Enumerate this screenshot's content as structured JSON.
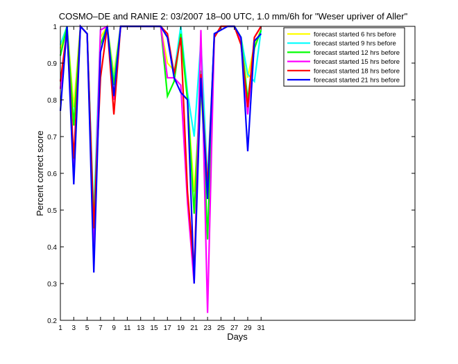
{
  "chart_data": {
    "type": "line",
    "title": "COSMO–DE and RANIE 2: 03/2007 18–00 UTC, 1.0 mm/6h for \"Weser upriver of Aller\"",
    "xlabel": "Days",
    "ylabel": "Percent correct score",
    "xlim": [
      1,
      54
    ],
    "ylim": [
      0.2,
      1.0
    ],
    "xticks": [
      1,
      3,
      5,
      7,
      9,
      11,
      13,
      15,
      17,
      19,
      21,
      23,
      25,
      27,
      29,
      31
    ],
    "yticks": [
      0.2,
      0.3,
      0.4,
      0.5,
      0.6,
      0.7,
      0.8,
      0.9,
      1
    ],
    "ytick_labels": [
      "0.2",
      "0.3",
      "0.4",
      "0.5",
      "0.6",
      "0.7",
      "0.8",
      "0.9",
      "1"
    ],
    "legend_position": "top-right",
    "grid": false,
    "x": [
      1,
      2,
      3,
      4,
      5,
      6,
      7,
      8,
      9,
      10,
      11,
      12,
      13,
      14,
      15,
      16,
      17,
      18,
      19,
      20,
      21,
      22,
      23,
      24,
      25,
      26,
      27,
      28,
      29,
      30,
      31
    ],
    "series": [
      {
        "name": "forecast started 6 hrs before",
        "color": "#ffff00",
        "values": [
          0.94,
          1.0,
          0.78,
          1.0,
          0.98,
          0.45,
          0.97,
          1.0,
          0.87,
          1.0,
          1.0,
          1.0,
          1.0,
          1.0,
          1.0,
          1.0,
          0.9,
          0.88,
          0.97,
          0.8,
          0.55,
          0.82,
          0.55,
          0.97,
          1.0,
          1.0,
          1.0,
          0.97,
          0.86,
          0.95,
          0.99
        ]
      },
      {
        "name": "forecast started 9 hrs before",
        "color": "#00ffff",
        "values": [
          0.95,
          1.0,
          0.73,
          1.0,
          0.98,
          0.48,
          0.99,
          1.0,
          0.85,
          1.0,
          1.0,
          1.0,
          1.0,
          1.0,
          1.0,
          1.0,
          0.97,
          0.87,
          1.0,
          0.82,
          0.7,
          0.96,
          0.58,
          0.97,
          1.0,
          1.0,
          1.0,
          0.97,
          0.87,
          0.85,
          0.99
        ]
      },
      {
        "name": "forecast started 12 hrs before",
        "color": "#00ff00",
        "values": [
          0.92,
          1.0,
          0.73,
          1.0,
          0.98,
          0.46,
          0.95,
          1.0,
          0.84,
          1.0,
          1.0,
          1.0,
          1.0,
          1.0,
          1.0,
          1.0,
          0.81,
          0.85,
          0.98,
          0.8,
          0.49,
          0.88,
          0.42,
          0.97,
          1.0,
          1.0,
          1.0,
          0.97,
          0.8,
          0.94,
          0.99
        ]
      },
      {
        "name": "forecast started 15 hrs before",
        "color": "#ff00ff",
        "values": [
          0.83,
          0.99,
          0.62,
          1.0,
          0.98,
          0.4,
          0.99,
          1.0,
          0.8,
          1.0,
          1.0,
          1.0,
          1.0,
          1.0,
          1.0,
          1.0,
          0.86,
          0.86,
          0.84,
          0.52,
          0.3,
          0.99,
          0.22,
          0.97,
          1.0,
          1.0,
          1.0,
          0.96,
          0.76,
          0.97,
          1.0
        ]
      },
      {
        "name": "forecast started 18 hrs before",
        "color": "#ff0000",
        "values": [
          0.85,
          0.99,
          0.64,
          1.0,
          0.98,
          0.45,
          0.86,
          1.0,
          0.76,
          1.0,
          1.0,
          1.0,
          1.0,
          1.0,
          1.0,
          1.0,
          0.98,
          0.87,
          0.97,
          0.55,
          0.33,
          0.87,
          0.56,
          0.97,
          1.0,
          1.0,
          1.0,
          0.95,
          0.78,
          0.97,
          1.0
        ]
      },
      {
        "name": "forecast started 21 hrs before",
        "color": "#0000ff",
        "values": [
          0.77,
          1.0,
          0.57,
          1.0,
          0.98,
          0.33,
          0.93,
          1.0,
          0.81,
          1.0,
          1.0,
          1.0,
          1.0,
          1.0,
          1.0,
          1.0,
          0.97,
          0.86,
          0.82,
          0.8,
          0.3,
          0.86,
          0.53,
          0.98,
          0.99,
          1.0,
          1.0,
          0.97,
          0.66,
          0.96,
          0.98
        ]
      }
    ]
  }
}
